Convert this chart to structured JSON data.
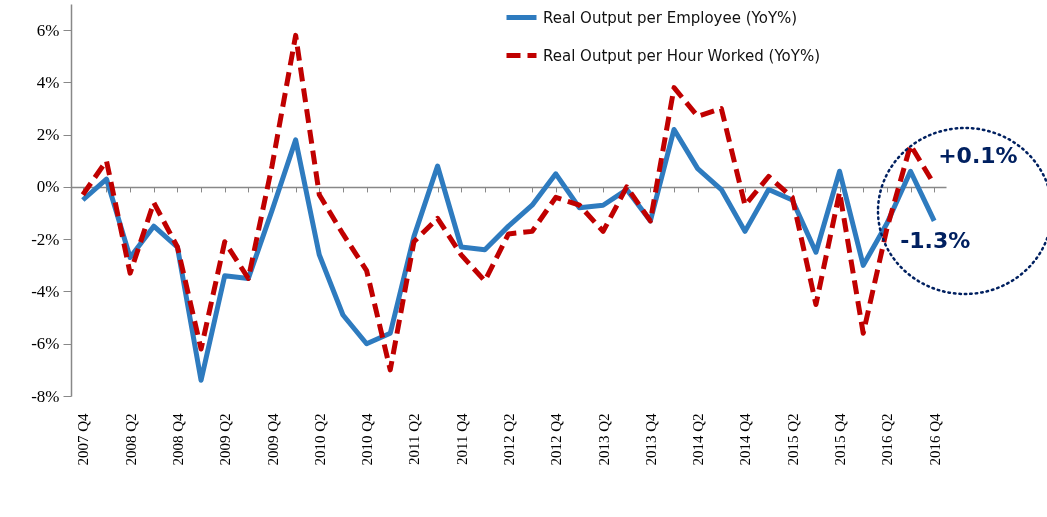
{
  "chart_data": {
    "type": "line",
    "categories": [
      "2007 Q4",
      null,
      "2008 Q2",
      null,
      "2008 Q4",
      null,
      "2009 Q2",
      null,
      "2009 Q4",
      null,
      "2010 Q2",
      null,
      "2010 Q4",
      null,
      "2011 Q2",
      null,
      "2011 Q4",
      null,
      "2012 Q2",
      null,
      "2012 Q4",
      null,
      "2013 Q2",
      null,
      "2013 Q4",
      null,
      "2014 Q2",
      null,
      "2014 Q4",
      null,
      "2015 Q2",
      null,
      "2015 Q4",
      null,
      "2016 Q2",
      null,
      "2016 Q4"
    ],
    "series": [
      {
        "name": "Real Output per Employee (YoY%)",
        "color": "#2e7bbf",
        "line_style": "solid",
        "values": [
          -0.5,
          0.3,
          -2.7,
          -1.5,
          -2.3,
          -7.4,
          -3.4,
          -3.5,
          -0.9,
          1.8,
          -2.6,
          -4.9,
          -6.0,
          -5.6,
          -1.9,
          0.8,
          -2.3,
          -2.4,
          -1.5,
          -0.7,
          0.5,
          -0.8,
          -0.7,
          -0.1,
          -1.3,
          2.2,
          0.7,
          -0.1,
          -1.7,
          -0.1,
          -0.5,
          -2.5,
          0.6,
          -3.0,
          -1.4,
          0.6,
          -1.3
        ]
      },
      {
        "name": "Real Output per Hour Worked (YoY%)",
        "color": "#c00000",
        "line_style": "dashed",
        "values": [
          -0.3,
          1.0,
          -3.3,
          -0.6,
          -2.3,
          -6.2,
          -2.1,
          -3.5,
          0.8,
          5.8,
          -0.3,
          -1.8,
          -3.2,
          -7.0,
          -2.1,
          -1.2,
          -2.6,
          -3.6,
          -1.8,
          -1.7,
          -0.4,
          -0.7,
          -1.7,
          0.0,
          -1.3,
          3.8,
          2.7,
          3.0,
          -0.7,
          0.4,
          -0.4,
          -4.5,
          -0.2,
          -5.6,
          -1.6,
          1.6,
          0.1
        ]
      }
    ],
    "ylim": [
      -8,
      7
    ],
    "yticks": [
      {
        "value": -8,
        "label": "-8%"
      },
      {
        "value": -6,
        "label": "-6%"
      },
      {
        "value": -4,
        "label": "-4%"
      },
      {
        "value": -2,
        "label": "-2%"
      },
      {
        "value": 0,
        "label": "0%"
      },
      {
        "value": 2,
        "label": "2%"
      },
      {
        "value": 4,
        "label": "4%"
      },
      {
        "value": 6,
        "label": "6%"
      }
    ],
    "annotations": [
      {
        "text": "+0.1%",
        "x": "2016 Q4",
        "y": 0.1
      },
      {
        "text": "-1.3%",
        "x": "2016 Q4",
        "y": -1.3
      }
    ],
    "legend": "top right",
    "marker": "none"
  }
}
